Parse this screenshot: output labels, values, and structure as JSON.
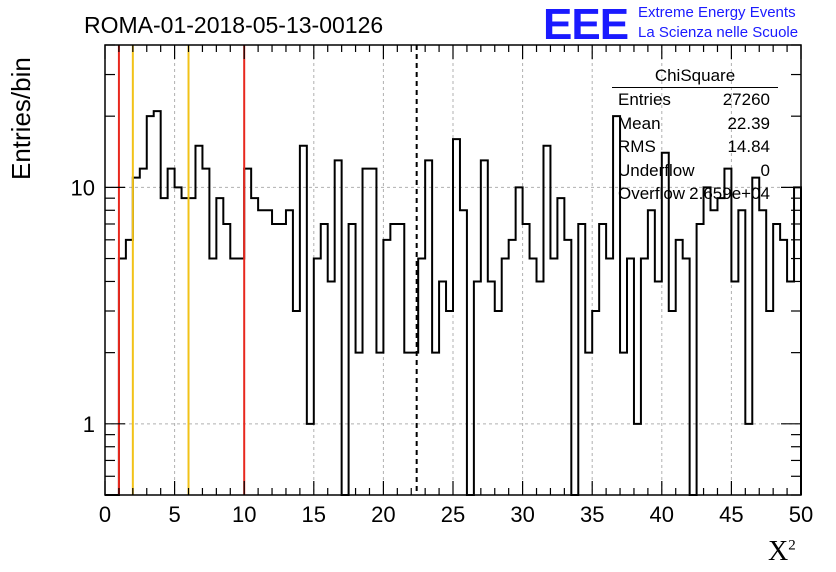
{
  "title": "ROMA-01-2018-05-13-00126",
  "logo": {
    "text": "EEE",
    "line1": "Extreme Energy Events",
    "line2": "La Scienza nelle Scuole",
    "color": "#1a1aff"
  },
  "stats": {
    "title": "ChiSquare",
    "rows": [
      {
        "label": "Entries",
        "value": "27260"
      },
      {
        "label": "Mean",
        "value": "22.39"
      },
      {
        "label": "RMS",
        "value": "14.84"
      },
      {
        "label": "Underflow",
        "value": "0"
      },
      {
        "label": "Overflow",
        "value": "2.659e+04"
      }
    ]
  },
  "chart_data": {
    "type": "histogram",
    "ylabel": "Entries/bin",
    "xlabel_base": "X",
    "xlabel_sup": "2",
    "xlim": [
      0,
      50
    ],
    "ylim": [
      0.5,
      40
    ],
    "yscale": "log",
    "grid": true,
    "bin_width": 0.5,
    "x_ticks": [
      "0",
      "5",
      "10",
      "15",
      "20",
      "25",
      "30",
      "35",
      "40",
      "45",
      "50"
    ],
    "y_tick_labels": [
      {
        "value": 1,
        "label": "1"
      },
      {
        "value": 10,
        "label": "10"
      }
    ],
    "values": [
      0,
      0,
      5,
      6,
      11,
      12,
      20,
      21,
      9,
      12,
      10,
      9,
      9,
      15,
      12,
      5,
      9,
      7,
      5,
      5,
      12,
      9,
      8,
      8,
      7,
      7,
      8,
      3,
      15,
      1,
      5,
      7,
      4,
      13,
      0,
      7,
      2,
      12,
      12,
      2,
      6,
      7,
      7,
      2,
      2,
      5,
      13,
      2,
      4,
      3,
      16,
      8,
      0,
      4,
      13,
      4,
      3,
      5,
      6,
      10,
      7,
      5,
      4,
      15,
      5,
      9,
      6,
      0,
      7,
      2,
      3,
      7,
      5,
      20,
      2,
      5,
      1,
      5,
      8,
      4,
      14,
      3,
      6,
      5,
      0,
      7,
      10,
      8,
      9,
      12,
      4,
      8,
      1,
      11,
      8,
      3,
      7,
      6,
      4,
      10
    ],
    "reference_lines": [
      {
        "x": 1,
        "color": "#e8281e",
        "style": "solid"
      },
      {
        "x": 10,
        "color": "#e8281e",
        "style": "solid"
      },
      {
        "x": 2,
        "color": "#f2c218",
        "style": "solid"
      },
      {
        "x": 6,
        "color": "#f2c218",
        "style": "solid"
      },
      {
        "x": 22.39,
        "color": "#000000",
        "style": "dashed"
      }
    ]
  }
}
